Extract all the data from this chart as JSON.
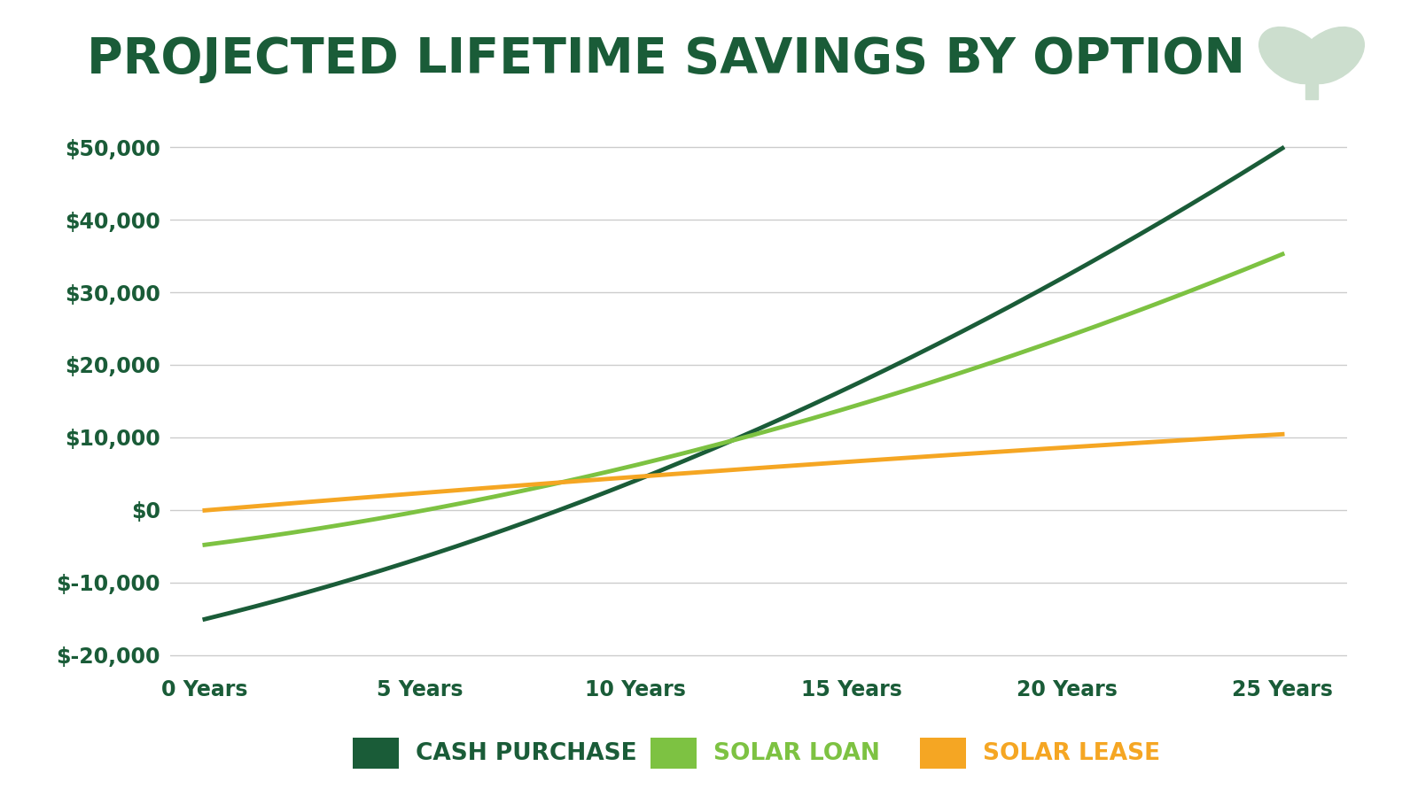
{
  "title": "PROJECTED LIFETIME SAVINGS BY OPTION",
  "title_color": "#1a5c38",
  "background_color": "#ffffff",
  "x_labels": [
    "0 Years",
    "5 Years",
    "10 Years",
    "15 Years",
    "20 Years",
    "25 Years"
  ],
  "x_values": [
    0,
    5,
    10,
    15,
    20,
    25
  ],
  "cash_purchase": [
    -15000,
    -7000,
    4500,
    17000,
    32000,
    50000
  ],
  "solar_loan": [
    -5000,
    500,
    5500,
    14000,
    24500,
    35000
  ],
  "solar_lease": [
    0,
    2000,
    5000,
    6500,
    8500,
    10500
  ],
  "cash_purchase_color": "#1a5c38",
  "solar_loan_color": "#7dc242",
  "solar_lease_color": "#f5a623",
  "ylim_min": -22000,
  "ylim_max": 56000,
  "yticks": [
    -20000,
    -10000,
    0,
    10000,
    20000,
    30000,
    40000,
    50000
  ],
  "line_width": 3.5,
  "legend_labels": [
    "CASH PURCHASE",
    "SOLAR LOAN",
    "SOLAR LEASE"
  ],
  "legend_colors": [
    "#1a5c38",
    "#7dc242",
    "#f5a623"
  ],
  "grid_color": "#cccccc",
  "tick_color": "#1a5c38",
  "watermark_color": "#ccdece"
}
